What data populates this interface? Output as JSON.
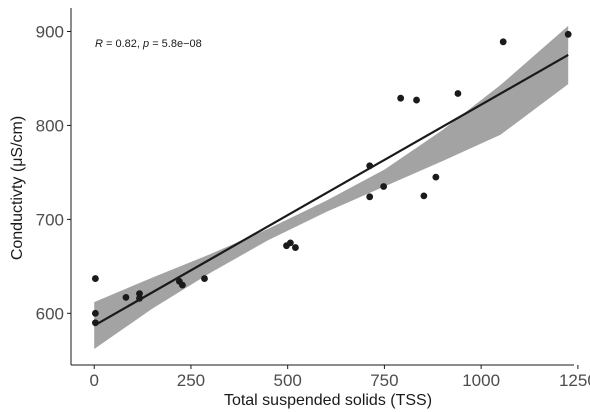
{
  "chart_data": {
    "type": "scatter",
    "xlabel": "Total suspended solids (TSS)",
    "ylabel": "Conductivty (μS/cm)",
    "xlim": [
      -60,
      1240
    ],
    "ylim": [
      545,
      925
    ],
    "x_ticks": [
      0,
      250,
      500,
      750,
      1000,
      1250
    ],
    "x_tick_labels": [
      "0",
      "250",
      "500",
      "750",
      "1000",
      "1250"
    ],
    "y_ticks": [
      600,
      700,
      800,
      900
    ],
    "y_tick_labels": [
      "600",
      "700",
      "800",
      "900"
    ],
    "annotation": {
      "r_label": "R",
      "r_value": " = 0.82, ",
      "p_label": "p",
      "p_value": " = 5.8e−08"
    },
    "points": [
      {
        "x": 3,
        "y": 637
      },
      {
        "x": 3,
        "y": 600
      },
      {
        "x": 3,
        "y": 590
      },
      {
        "x": 82,
        "y": 617
      },
      {
        "x": 117,
        "y": 621
      },
      {
        "x": 117,
        "y": 616
      },
      {
        "x": 220,
        "y": 634
      },
      {
        "x": 228,
        "y": 630
      },
      {
        "x": 285,
        "y": 637
      },
      {
        "x": 497,
        "y": 672
      },
      {
        "x": 507,
        "y": 675
      },
      {
        "x": 520,
        "y": 670
      },
      {
        "x": 712,
        "y": 757
      },
      {
        "x": 712,
        "y": 724
      },
      {
        "x": 748,
        "y": 735
      },
      {
        "x": 792,
        "y": 829
      },
      {
        "x": 833,
        "y": 827
      },
      {
        "x": 852,
        "y": 725
      },
      {
        "x": 883,
        "y": 745
      },
      {
        "x": 940,
        "y": 834
      },
      {
        "x": 1057,
        "y": 889
      },
      {
        "x": 1225,
        "y": 897
      }
    ],
    "fit_line": {
      "x": [
        0,
        1225
      ],
      "y": [
        587,
        875
      ]
    },
    "confidence_band": {
      "x": [
        0,
        150,
        300,
        450,
        600,
        750,
        900,
        1050,
        1225
      ],
      "lower": [
        562,
        605,
        643,
        678,
        708,
        735,
        762,
        790,
        844
      ],
      "upper": [
        612,
        638,
        663,
        690,
        720,
        753,
        795,
        843,
        906
      ]
    },
    "point_color": "#1a1a1a",
    "line_color": "#1a1a1a",
    "band_color": "#999999",
    "grid": false,
    "legend": "none"
  }
}
